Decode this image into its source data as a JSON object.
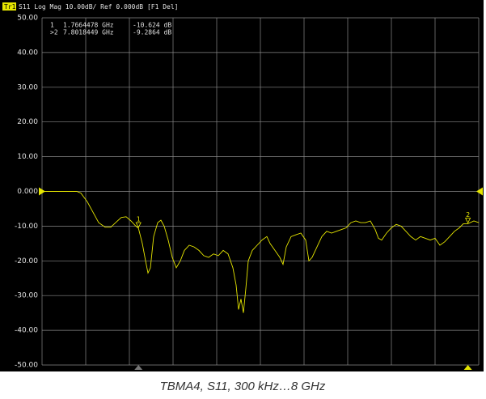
{
  "chart_data": {
    "type": "line",
    "trace_label": "Tr1",
    "header": "S11 Log Mag 10.00dB/ Ref 0.000dB [F1 Del]",
    "caption": "TBMA4, S11, 300 kHz…8 GHz",
    "color": "#e6e600",
    "grid": true,
    "ref_level": 0,
    "xlim": [
      0.0003,
      8
    ],
    "ylim": [
      -50,
      50
    ],
    "yticks": [
      {
        "value": 50,
        "label": "50.00"
      },
      {
        "value": 40,
        "label": "40.00"
      },
      {
        "value": 30,
        "label": "30.00"
      },
      {
        "value": 20,
        "label": "20.00"
      },
      {
        "value": 10,
        "label": "10.00"
      },
      {
        "value": 0,
        "label": "0.000"
      },
      {
        "value": -10,
        "label": "-10.00"
      },
      {
        "value": -20,
        "label": "-20.00"
      },
      {
        "value": -30,
        "label": "-30.00"
      },
      {
        "value": -40,
        "label": "-40.00"
      },
      {
        "value": -50,
        "label": "-50.00"
      }
    ],
    "x": [
      0.0003,
      0.637,
      0.711,
      0.83,
      0.933,
      1.037,
      1.156,
      1.259,
      1.348,
      1.452,
      1.541,
      1.63,
      1.719,
      1.766,
      1.837,
      1.896,
      1.941,
      1.985,
      2.044,
      2.119,
      2.178,
      2.237,
      2.311,
      2.385,
      2.459,
      2.533,
      2.607,
      2.696,
      2.785,
      2.874,
      2.963,
      3.052,
      3.141,
      3.23,
      3.319,
      3.407,
      3.496,
      3.556,
      3.6,
      3.644,
      3.689,
      3.733,
      3.778,
      3.852,
      3.941,
      4.03,
      4.119,
      4.178,
      4.267,
      4.356,
      4.415,
      4.474,
      4.563,
      4.652,
      4.741,
      4.83,
      4.889,
      4.948,
      5.037,
      5.126,
      5.215,
      5.304,
      5.393,
      5.481,
      5.57,
      5.659,
      5.748,
      5.837,
      5.926,
      6.015,
      6.104,
      6.163,
      6.222,
      6.311,
      6.4,
      6.489,
      6.578,
      6.667,
      6.756,
      6.844,
      6.933,
      7.022,
      7.111,
      7.2,
      7.289,
      7.378,
      7.467,
      7.556,
      7.644,
      7.719,
      7.802,
      7.911,
      8
    ],
    "values": [
      0,
      0,
      -0.5,
      -3,
      -6,
      -9,
      -10.3,
      -10.3,
      -9,
      -7.5,
      -7.3,
      -8.5,
      -10,
      -10.6,
      -15,
      -20,
      -23.5,
      -22,
      -13,
      -9,
      -8.3,
      -10,
      -14,
      -19,
      -22,
      -20,
      -17,
      -15.5,
      -16,
      -17,
      -18.5,
      -19,
      -18,
      -18.5,
      -17,
      -18,
      -22,
      -27,
      -34,
      -31,
      -35,
      -28,
      -20,
      -17,
      -15.5,
      -14,
      -13,
      -15,
      -17,
      -19,
      -21,
      -16,
      -13,
      -12.5,
      -12,
      -14,
      -20,
      -19,
      -16,
      -13,
      -11.5,
      -12,
      -11.5,
      -11,
      -10.5,
      -9,
      -8.5,
      -9,
      -9,
      -8.5,
      -11,
      -13.5,
      -14,
      -12,
      -10.5,
      -9.5,
      -10,
      -11.5,
      -13,
      -14,
      -13,
      -13.5,
      -14,
      -13.5,
      -15.5,
      -14.5,
      -13,
      -11.5,
      -10.5,
      -9.3,
      -9.3,
      -8.5,
      -9
    ],
    "markers": [
      {
        "name": "1",
        "readout_id": "1",
        "x": 1.7664478,
        "x_label": "1.7664478 GHz",
        "value": -10.624,
        "value_label": "-10.624 dB"
      },
      {
        "name": "2",
        "readout_id": ">2",
        "x": 7.8018449,
        "x_label": "7.8018449 GHz",
        "value": -9.2864,
        "value_label": "-9.2864 dB"
      }
    ]
  }
}
